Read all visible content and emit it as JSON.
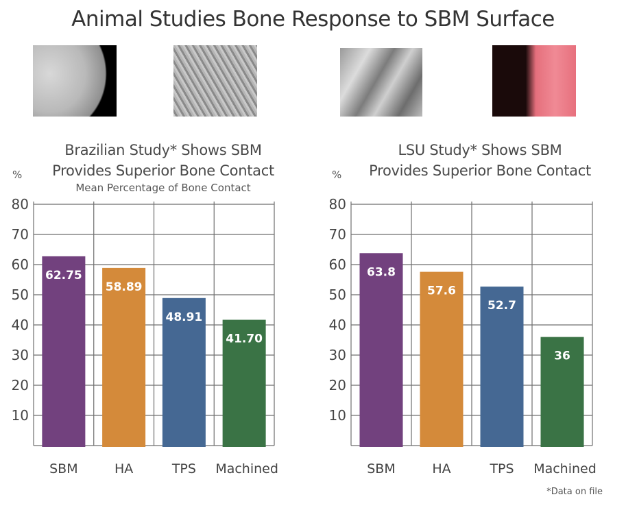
{
  "title": "Animal Studies Bone Response to SBM Surface",
  "images": [
    {
      "icon": "sem-bone-surface-image"
    },
    {
      "icon": "sem-textured-surface-image"
    },
    {
      "icon": "sem-crystal-surface-image"
    },
    {
      "icon": "histology-thread-image"
    }
  ],
  "footnote": "*Data on file",
  "colors": {
    "SBM": "#72417e",
    "HA": "#d48a3a",
    "TPS": "#456893",
    "Machined": "#3a7345",
    "grid": "#6e6e6e"
  },
  "chart_data": [
    {
      "type": "bar",
      "title_line1": "Brazilian Study* Shows SBM",
      "title_line2": "Provides Superior Bone Contact",
      "subtitle": "Mean Percentage of Bone Contact",
      "ylabel": "%",
      "categories": [
        "SBM",
        "HA",
        "TPS",
        "Machined"
      ],
      "values": [
        62.75,
        58.89,
        48.91,
        41.7
      ],
      "value_labels": [
        "62.75",
        "58.89",
        "48.91",
        "41.70"
      ],
      "yticks": [
        "10",
        "20",
        "30",
        "40",
        "50",
        "60",
        "70",
        "80"
      ],
      "ylim": [
        0,
        80
      ],
      "grid": true
    },
    {
      "type": "bar",
      "title_line1": "LSU Study* Shows SBM",
      "title_line2": "Provides Superior Bone Contact",
      "ylabel": "%",
      "categories": [
        "SBM",
        "HA",
        "TPS",
        "Machined"
      ],
      "values": [
        63.8,
        57.6,
        52.7,
        36
      ],
      "value_labels": [
        "63.8",
        "57.6",
        "52.7",
        "36"
      ],
      "yticks": [
        "10",
        "20",
        "30",
        "40",
        "50",
        "60",
        "70",
        "80"
      ],
      "ylim": [
        0,
        80
      ],
      "grid": true
    }
  ]
}
